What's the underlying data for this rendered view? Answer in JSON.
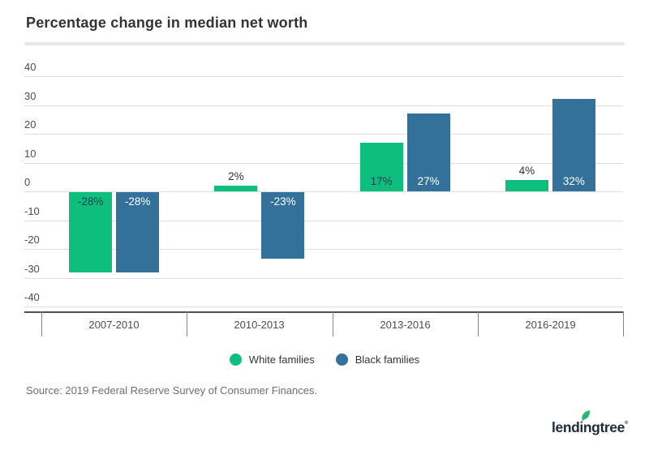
{
  "page": {
    "title": "Percentage change in median net worth",
    "source": "Source: 2019 Federal Reserve Survey of Consumer Finances.",
    "logo": {
      "text": "lendingtree",
      "mark": "®"
    }
  },
  "colors": {
    "green": "#0dbe7d",
    "blue": "#33719a",
    "title_text": "#333333",
    "axis_text": "#4d4d4d",
    "grid_line": "#dddddd",
    "axis_line": "#4f4f4f",
    "label_on_green": "#1e4055",
    "label_on_blue": "#ffffff",
    "label_outside": "#333333",
    "source_text": "#6e6e6e",
    "logo_navy": "#1e2b3c",
    "logo_leaf": "#29b770"
  },
  "chart_data": {
    "type": "bar",
    "title": "Percentage change in median net worth",
    "categories": [
      "2007-2010",
      "2010-2013",
      "2013-2016",
      "2016-2019"
    ],
    "series": [
      {
        "name": "White families",
        "color_key": "green",
        "values": [
          -28,
          2,
          17,
          4
        ],
        "labels": [
          "-28%",
          "2%",
          "17%",
          "4%"
        ]
      },
      {
        "name": "Black families",
        "color_key": "blue",
        "values": [
          -28,
          -23,
          27,
          32
        ],
        "labels": [
          "-28%",
          "-23%",
          "27%",
          "32%"
        ]
      }
    ],
    "xlabel": "",
    "ylabel": "",
    "ylim": [
      -40,
      40
    ],
    "ytick_step": 10,
    "yticks": [
      40,
      30,
      20,
      10,
      0,
      -10,
      -20,
      -30,
      -40
    ],
    "grid": true,
    "legend_position": "bottom"
  }
}
